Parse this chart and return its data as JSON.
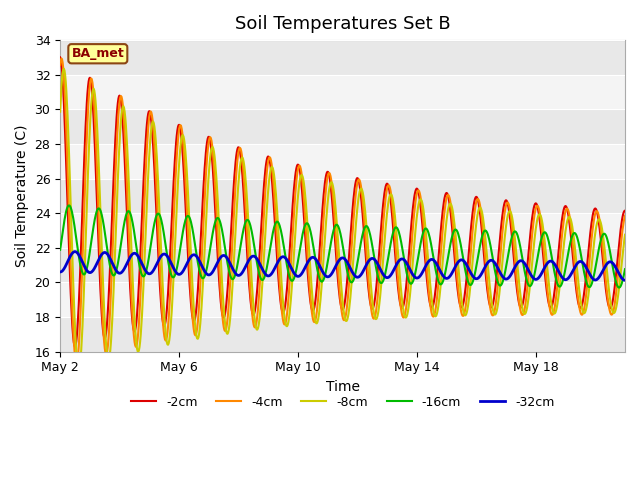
{
  "title": "Soil Temperatures Set B",
  "xlabel": "Time",
  "ylabel": "Soil Temperature (C)",
  "ylim": [
    16,
    34
  ],
  "xlim_days": [
    0,
    19
  ],
  "x_ticks_days": [
    0,
    4,
    8,
    12,
    16
  ],
  "x_tick_labels": [
    "May 2",
    "May 6",
    "May 10",
    "May 14",
    "May 18"
  ],
  "legend_labels": [
    "-2cm",
    "-4cm",
    "-8cm",
    "-16cm",
    "-32cm"
  ],
  "line_colors": [
    "#dd0000",
    "#ff8800",
    "#cccc00",
    "#00bb00",
    "#0000cc"
  ],
  "line_widths": [
    1.5,
    1.5,
    1.5,
    1.5,
    2.0
  ],
  "band_colors": [
    "#e8e8e8",
    "#f4f4f4"
  ],
  "band_edges": [
    16,
    18,
    20,
    22,
    24,
    26,
    28,
    30,
    32,
    34
  ],
  "annotation_text": "BA_met",
  "title_fontsize": 13,
  "tick_labelsize": 9,
  "xlabel_fontsize": 10,
  "ylabel_fontsize": 10,
  "legend_fontsize": 9
}
